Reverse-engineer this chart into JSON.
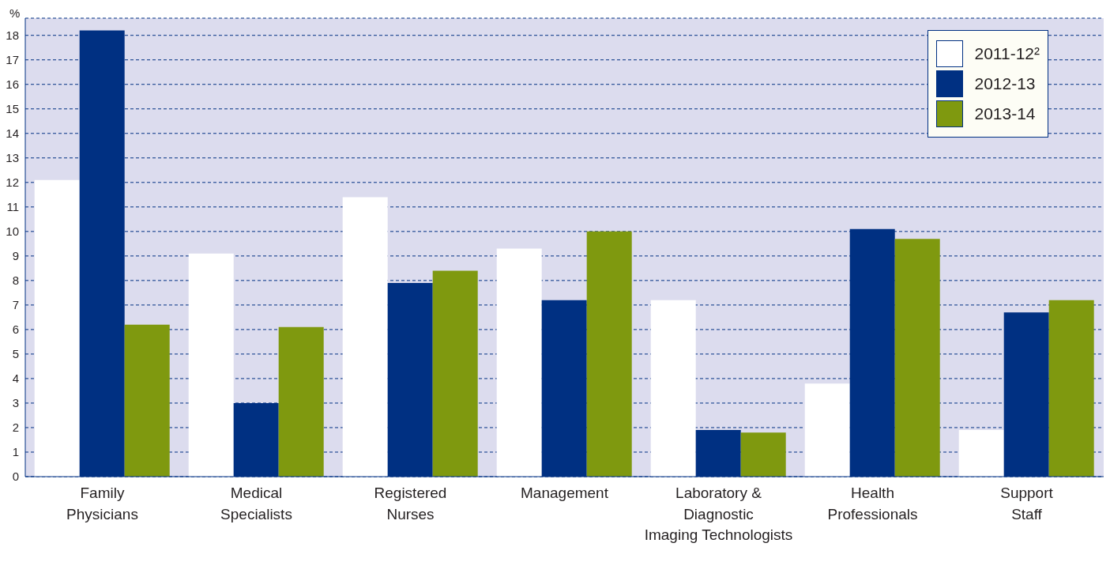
{
  "chart_data": {
    "type": "bar",
    "ylabel": "%",
    "categories": [
      "Family\nPhysicians",
      "Medical\nSpecialists",
      "Registered\nNurses",
      "Management",
      "Laboratory &\nDiagnostic\nImaging Technologists",
      "Health\nProfessionals",
      "Support\nStaff"
    ],
    "series": [
      {
        "name": "2011-12²",
        "color": "#ffffff",
        "values": [
          12.1,
          9.1,
          11.4,
          9.3,
          7.2,
          3.8,
          1.9
        ]
      },
      {
        "name": "2012-13",
        "color": "#003082",
        "values": [
          18.2,
          3.0,
          7.9,
          7.2,
          1.9,
          10.1,
          6.7
        ]
      },
      {
        "name": "2013-14",
        "color": "#7f990f",
        "values": [
          6.2,
          6.1,
          8.4,
          10.0,
          1.8,
          9.7,
          7.2
        ]
      }
    ],
    "ylim": [
      0,
      18.7
    ],
    "yticks": [
      0,
      1,
      2,
      3,
      4,
      5,
      6,
      7,
      8,
      9,
      10,
      11,
      12,
      13,
      14,
      15,
      16,
      17,
      18
    ],
    "grid": "y",
    "legend": "top right"
  }
}
